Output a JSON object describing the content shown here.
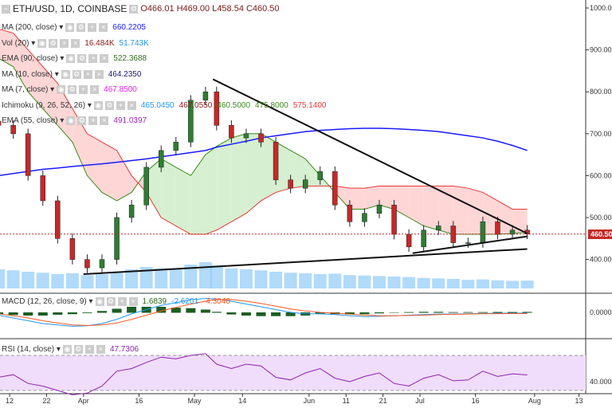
{
  "header": {
    "symbol": "ETH/USD, 1D, COINBASE",
    "open": "O466.01",
    "high": "H469.00",
    "low": "L458.54",
    "close": "C460.50"
  },
  "legends": [
    {
      "label": "MA (200, close)",
      "values": [
        {
          "v": "660.2205",
          "c": "#1a1aff"
        }
      ]
    },
    {
      "label": "Vol (20)",
      "values": [
        {
          "v": "16.484K",
          "c": "#8b1a1a"
        },
        {
          "v": "51.743K",
          "c": "#2196f3"
        }
      ]
    },
    {
      "label": "EMA (90, close)",
      "values": [
        {
          "v": "522.3688",
          "c": "#2e6b1a"
        }
      ]
    },
    {
      "label": "MA (10, close)",
      "values": [
        {
          "v": "464.2350",
          "c": "#1a1a6b"
        }
      ]
    },
    {
      "label": "MA (7, close)",
      "values": [
        {
          "v": "467.8500",
          "c": "#e91ee9"
        }
      ]
    },
    {
      "label": "Ichimoku (9, 26, 52, 26)",
      "values": [
        {
          "v": "465.0450",
          "c": "#2196f3"
        },
        {
          "v": "467.0550",
          "c": "#8b1a1a"
        },
        {
          "v": "460.5000",
          "c": "#3a8a1a"
        },
        {
          "v": "475.8000",
          "c": "#3a8a1a"
        },
        {
          "v": "575.1400",
          "c": "#e53935"
        }
      ]
    },
    {
      "label": "EMA (55, close)",
      "values": [
        {
          "v": "491.0397",
          "c": "#9c27b0"
        }
      ]
    }
  ],
  "macd_legend": {
    "label": "MACD (12, 26, close, 9)",
    "values": [
      {
        "v": "1.6839",
        "c": "#2e6b1a"
      },
      {
        "v": "-2.6201",
        "c": "#2196f3"
      },
      {
        "v": "-4.3040",
        "c": "#ff5722"
      }
    ]
  },
  "rsi_legend": {
    "label": "RSI (14, close)",
    "values": [
      {
        "v": "47.7306",
        "c": "#8e24aa"
      }
    ]
  },
  "last_price": "460.50",
  "colors": {
    "up": "#2e7d32",
    "down": "#c62828",
    "cloud_bear": "#ffd6d6",
    "cloud_bull": "#d6efd0",
    "ma200": "#1a1aff",
    "rsi": "#8e24aa",
    "rsi_band": "#f0dcfb"
  },
  "chart_data": {
    "type": "candlestick",
    "price_axis": {
      "ylim": [
        330,
        1020
      ],
      "ticks": [
        "1000.00",
        "900.00",
        "800.00",
        "700.00",
        "600.00",
        "500.00",
        "400.00"
      ]
    },
    "macd_axis": {
      "ticks": [
        "0.0000"
      ]
    },
    "rsi_axis": {
      "ticks": [
        "40.0000"
      ]
    },
    "x_ticks": [
      {
        "d": "2018-03-12",
        "l": "12"
      },
      {
        "d": "2018-03-22",
        "l": "22"
      },
      {
        "d": "2018-04-01",
        "l": "Apr"
      },
      {
        "d": "2018-04-16",
        "l": "16"
      },
      {
        "d": "2018-05-01",
        "l": "May"
      },
      {
        "d": "2018-05-14",
        "l": "14"
      },
      {
        "d": "2018-06-01",
        "l": "Jun"
      },
      {
        "d": "2018-06-11",
        "l": "11"
      },
      {
        "d": "2018-06-21",
        "l": "21"
      },
      {
        "d": "2018-07-01",
        "l": "Jul"
      },
      {
        "d": "2018-07-16",
        "l": "16"
      },
      {
        "d": "2018-08-01",
        "l": "Aug"
      },
      {
        "d": "2018-08-13",
        "l": "13"
      }
    ],
    "dates": [
      "2018-03-09",
      "2018-03-13",
      "2018-03-17",
      "2018-03-21",
      "2018-03-25",
      "2018-03-29",
      "2018-04-02",
      "2018-04-06",
      "2018-04-10",
      "2018-04-14",
      "2018-04-18",
      "2018-04-22",
      "2018-04-26",
      "2018-04-30",
      "2018-05-04",
      "2018-05-07",
      "2018-05-11",
      "2018-05-15",
      "2018-05-19",
      "2018-05-23",
      "2018-05-27",
      "2018-05-31",
      "2018-06-04",
      "2018-06-08",
      "2018-06-12",
      "2018-06-16",
      "2018-06-20",
      "2018-06-24",
      "2018-06-28",
      "2018-07-02",
      "2018-07-06",
      "2018-07-10",
      "2018-07-14",
      "2018-07-18",
      "2018-07-22",
      "2018-07-26",
      "2018-07-30"
    ],
    "close": [
      720,
      700,
      600,
      540,
      450,
      400,
      380,
      400,
      500,
      530,
      620,
      660,
      680,
      780,
      800,
      720,
      690,
      700,
      680,
      590,
      570,
      590,
      610,
      530,
      490,
      510,
      530,
      460,
      430,
      470,
      480,
      440,
      440,
      490,
      460,
      470,
      460.5
    ],
    "ma200": [
      600,
      605,
      610,
      615,
      618,
      622,
      625,
      628,
      632,
      636,
      640,
      645,
      650,
      655,
      660,
      668,
      675,
      682,
      690,
      695,
      700,
      705,
      708,
      710,
      712,
      713,
      713,
      712,
      710,
      708,
      705,
      700,
      695,
      690,
      682,
      672,
      660
    ],
    "cloud_span_a": [
      880,
      860,
      800,
      760,
      720,
      680,
      600,
      560,
      540,
      560,
      610,
      640,
      620,
      600,
      650,
      670,
      690,
      700,
      700,
      680,
      660,
      640,
      600,
      560,
      520,
      520,
      530,
      520,
      500,
      480,
      470,
      460,
      460,
      460,
      460,
      462,
      465
    ],
    "cloud_span_b": [
      950,
      940,
      900,
      860,
      820,
      760,
      700,
      680,
      660,
      600,
      560,
      500,
      480,
      460,
      460,
      470,
      490,
      510,
      540,
      560,
      570,
      575,
      575,
      575,
      570,
      570,
      575,
      575,
      575,
      575,
      575,
      575,
      570,
      560,
      540,
      520,
      520
    ],
    "volume": [
      40,
      38,
      35,
      33,
      30,
      32,
      28,
      30,
      35,
      40,
      45,
      42,
      40,
      50,
      55,
      48,
      42,
      40,
      38,
      35,
      33,
      32,
      30,
      31,
      28,
      27,
      26,
      25,
      24,
      22,
      21,
      20,
      18,
      19,
      17,
      16,
      16.5
    ],
    "macd": [
      -10,
      -20,
      -30,
      -40,
      -45,
      -50,
      -48,
      -40,
      -25,
      -5,
      10,
      25,
      35,
      45,
      50,
      48,
      40,
      30,
      20,
      10,
      0,
      -5,
      -5,
      -8,
      -12,
      -15,
      -14,
      -12,
      -10,
      -8,
      -6,
      -6,
      -5,
      -4,
      -3,
      -3,
      -2.6
    ],
    "macd_signal": [
      -5,
      -12,
      -20,
      -30,
      -38,
      -45,
      -47,
      -45,
      -38,
      -25,
      -10,
      5,
      18,
      30,
      40,
      46,
      46,
      40,
      32,
      22,
      12,
      5,
      0,
      -3,
      -6,
      -10,
      -12,
      -12,
      -11,
      -10,
      -8,
      -7,
      -6,
      -5,
      -4.5,
      -4.4,
      -4.3
    ],
    "rsi": [
      45,
      48,
      38,
      35,
      30,
      25,
      27,
      35,
      52,
      55,
      62,
      68,
      66,
      70,
      72,
      60,
      55,
      60,
      58,
      45,
      42,
      50,
      55,
      44,
      40,
      46,
      50,
      38,
      35,
      44,
      48,
      41,
      42,
      52,
      46,
      49,
      47.7
    ],
    "trendlines": [
      {
        "from": [
          "2018-05-06",
          830
        ],
        "to": [
          "2018-07-30",
          462
        ]
      },
      {
        "from": [
          "2018-06-29",
          415
        ],
        "to": [
          "2018-07-30",
          455
        ]
      },
      {
        "from": [
          "2018-04-01",
          365
        ],
        "to": [
          "2018-07-30",
          425
        ]
      }
    ]
  }
}
